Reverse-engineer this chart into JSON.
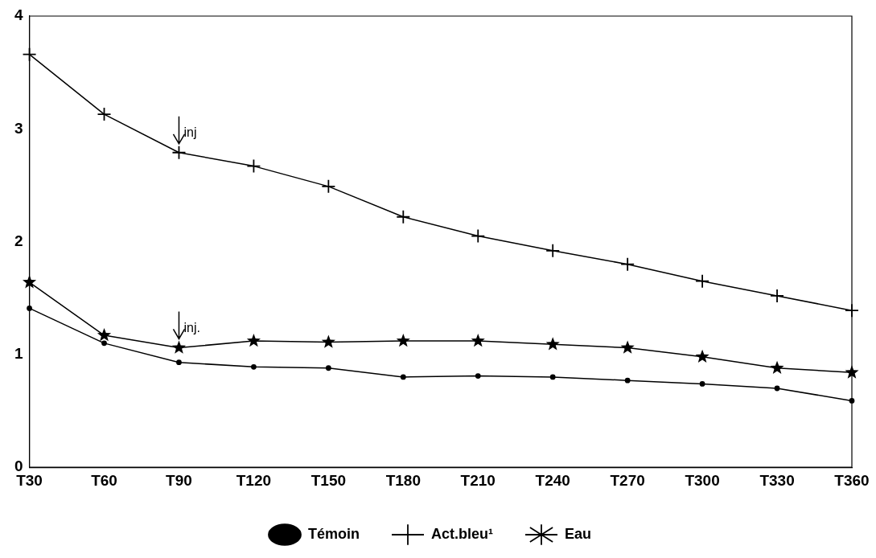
{
  "chart_data": {
    "type": "line",
    "categories": [
      "T30",
      "T60",
      "T90",
      "T120",
      "T150",
      "T180",
      "T210",
      "T240",
      "T270",
      "T300",
      "T330",
      "T360"
    ],
    "series": [
      {
        "name": "Témoin",
        "color": "#000000",
        "marker": "circle",
        "values": [
          1.41,
          1.1,
          0.93,
          0.89,
          0.88,
          0.8,
          0.81,
          0.8,
          0.77,
          0.74,
          0.7,
          0.59
        ]
      },
      {
        "name": "Act.bleu¹",
        "color": "#000000",
        "marker": "cross",
        "values": [
          3.66,
          3.13,
          2.79,
          2.67,
          2.49,
          2.22,
          2.05,
          1.92,
          1.8,
          1.65,
          1.52,
          1.39
        ]
      },
      {
        "name": "Eau",
        "color": "#000000",
        "marker": "star",
        "values": [
          1.64,
          1.17,
          1.06,
          1.12,
          1.11,
          1.12,
          1.12,
          1.09,
          1.06,
          0.98,
          0.88,
          0.84
        ]
      }
    ],
    "ylim": [
      0,
      4
    ],
    "yticks": [
      0,
      1,
      2,
      3,
      4
    ],
    "grid": false,
    "legend": "bottom",
    "line_style": "solid",
    "annotations": [
      {
        "text": "inj",
        "x": "T90",
        "y": 2.79
      },
      {
        "text": "inj.",
        "x": "T90",
        "y": 1.06
      }
    ]
  }
}
